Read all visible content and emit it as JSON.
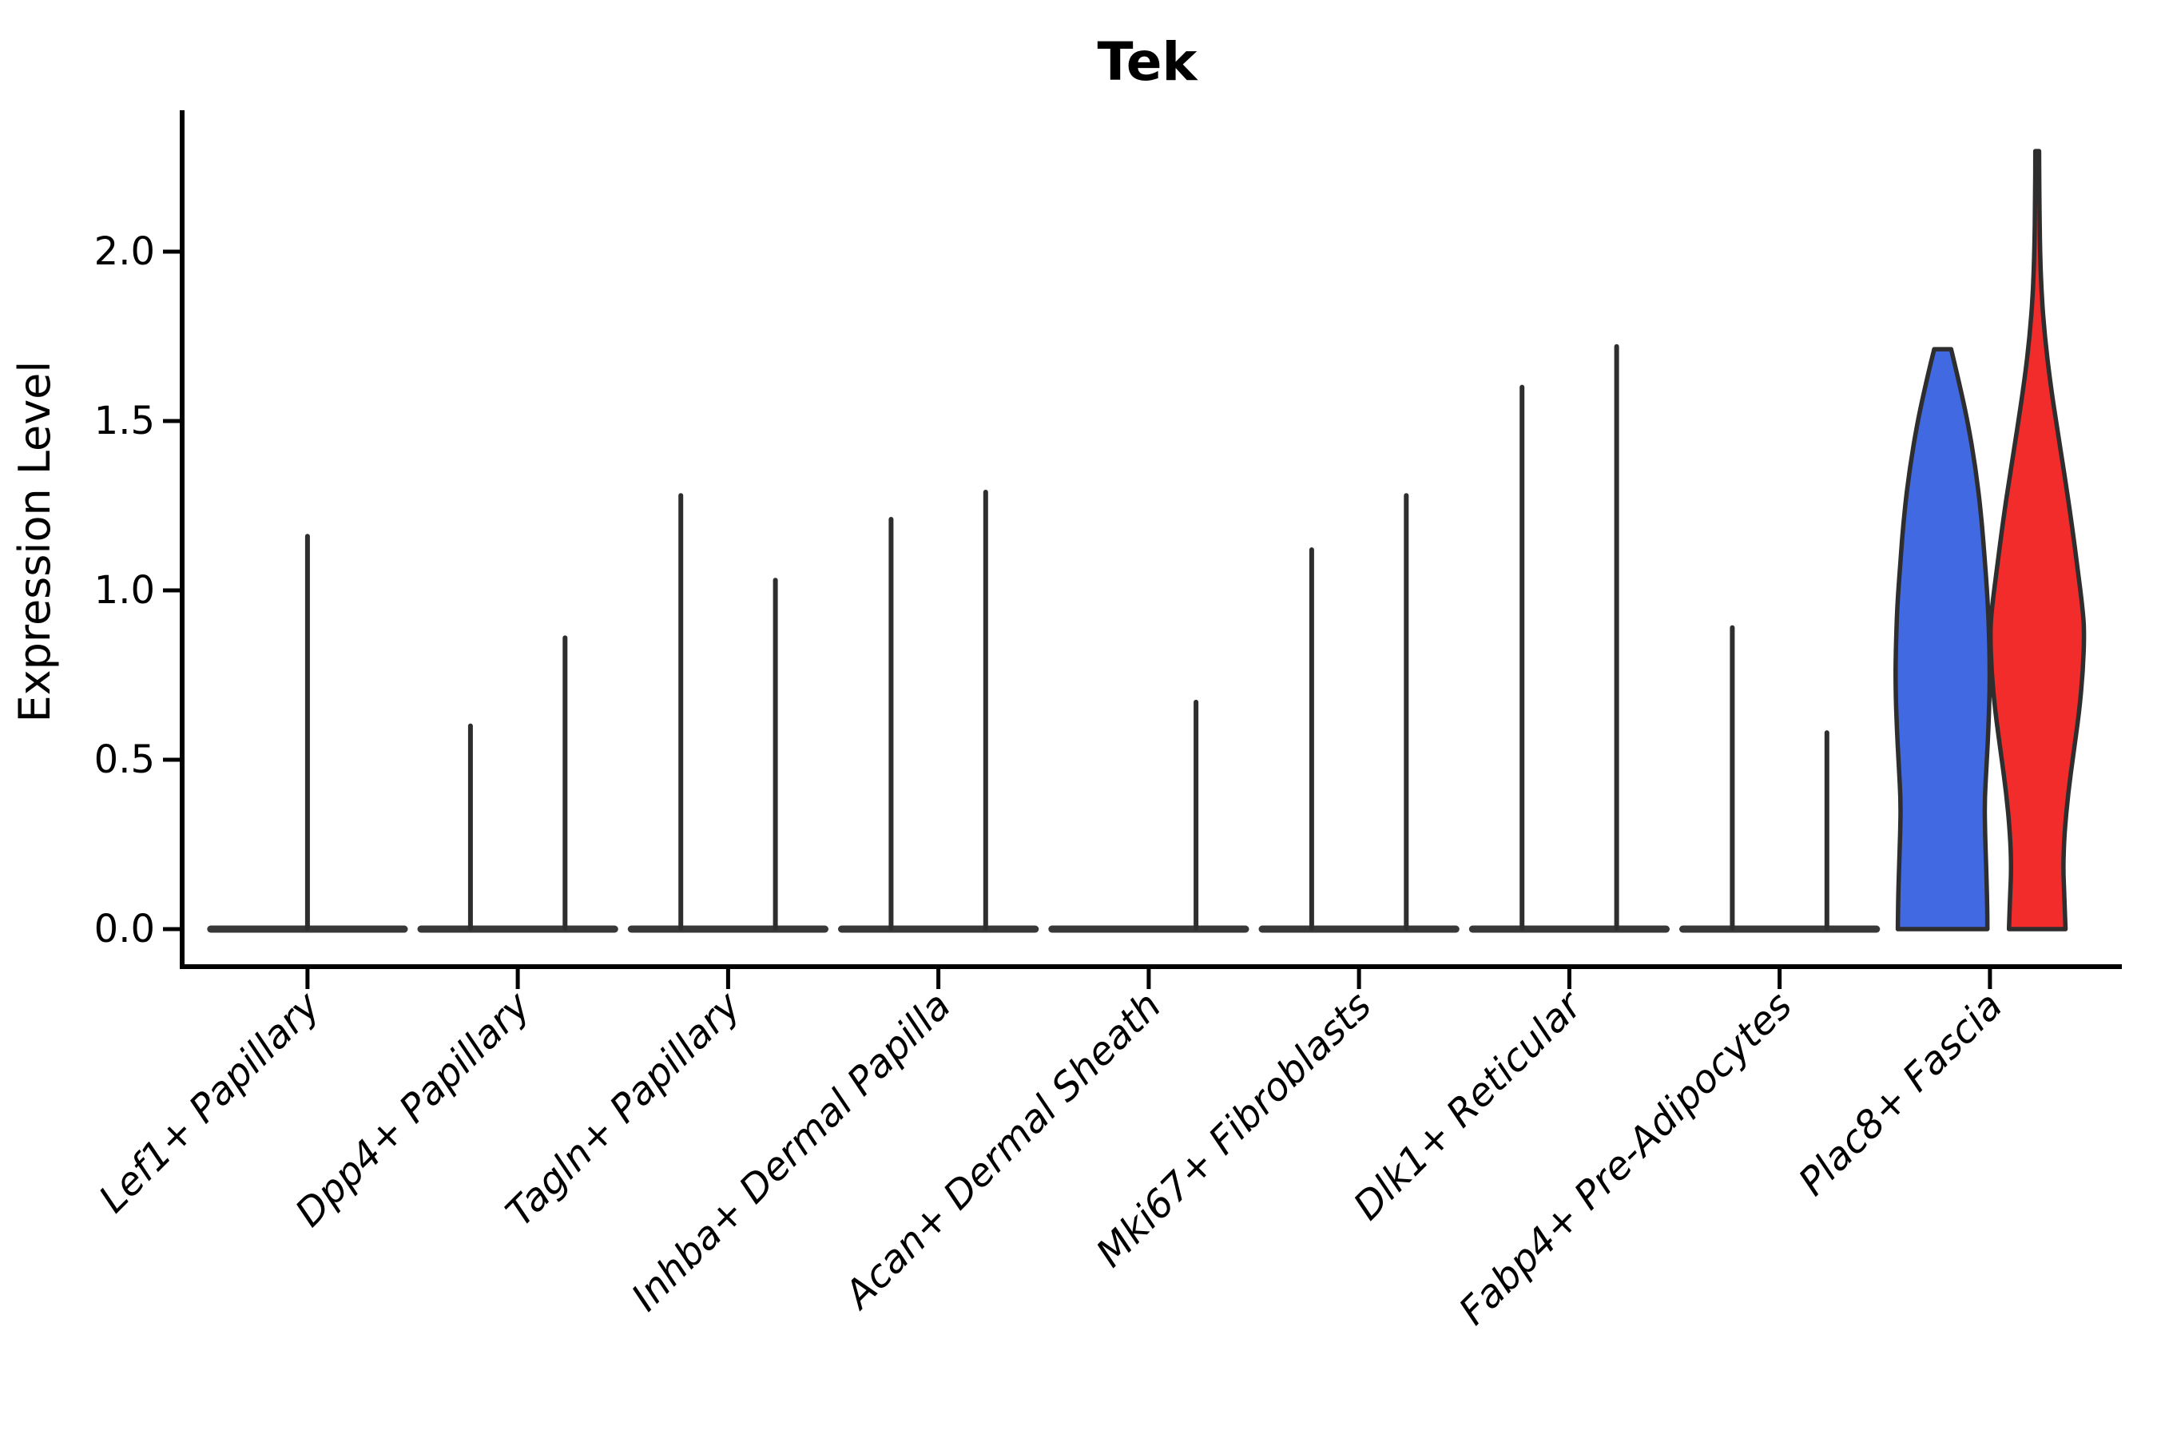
{
  "page": {
    "title": "Tek"
  },
  "chart_data": {
    "type": "violin",
    "title": "Tek",
    "xlabel": "",
    "ylabel": "Expression Level",
    "ytick_labels": [
      "0.0",
      "0.5",
      "1.0",
      "1.5",
      "2.0"
    ],
    "ytick_values": [
      0.0,
      0.5,
      1.0,
      1.5,
      2.0
    ],
    "ylim": [
      -0.11,
      2.41
    ],
    "grid": "off",
    "legend": "none",
    "categories": [
      "Lef1+ Papillary",
      "Dpp4+ Papillary",
      "Tagln+ Papillary",
      "Inhba+ Dermal Papilla",
      "Acan+ Dermal Sheath",
      "Mki67+ Fibroblasts",
      "Dlk1+ Reticular",
      "Fabp4+ Pre-Adipocytes",
      "Plac8+ Fascia"
    ],
    "groups": [
      {
        "category": "Lef1+ Papillary",
        "violins": [
          {
            "side": "center",
            "style": "spike",
            "max_expression": 1.16
          }
        ]
      },
      {
        "category": "Dpp4+ Papillary",
        "violins": [
          {
            "side": "left",
            "style": "spike",
            "max_expression": 0.6
          },
          {
            "side": "right",
            "style": "spike",
            "max_expression": 0.86
          }
        ]
      },
      {
        "category": "Tagln+ Papillary",
        "violins": [
          {
            "side": "left",
            "style": "spike",
            "max_expression": 1.28
          },
          {
            "side": "right",
            "style": "spike",
            "max_expression": 1.03
          }
        ]
      },
      {
        "category": "Inhba+ Dermal Papilla",
        "violins": [
          {
            "side": "left",
            "style": "spike",
            "max_expression": 1.21
          },
          {
            "side": "right",
            "style": "spike",
            "max_expression": 1.29
          }
        ]
      },
      {
        "category": "Acan+ Dermal Sheath",
        "violins": [
          {
            "side": "right",
            "style": "spike",
            "max_expression": 0.67
          }
        ]
      },
      {
        "category": "Mki67+ Fibroblasts",
        "violins": [
          {
            "side": "left",
            "style": "spike",
            "max_expression": 1.12
          },
          {
            "side": "right",
            "style": "spike",
            "max_expression": 1.28
          }
        ]
      },
      {
        "category": "Dlk1+ Reticular",
        "violins": [
          {
            "side": "left",
            "style": "spike",
            "max_expression": 1.6
          },
          {
            "side": "right",
            "style": "spike",
            "max_expression": 1.72
          }
        ]
      },
      {
        "category": "Fabp4+ Pre-Adipocytes",
        "violins": [
          {
            "side": "left",
            "style": "spike",
            "max_expression": 0.89
          },
          {
            "side": "right",
            "style": "spike",
            "max_expression": 0.58
          }
        ]
      },
      {
        "category": "Plac8+ Fascia",
        "violins": [
          {
            "side": "left",
            "style": "filled",
            "max_expression": 1.71,
            "color": "#4169E1",
            "profile": [
              [
                1.712,
                0.18
              ],
              [
                1.62,
                0.34
              ],
              [
                1.5,
                0.53
              ],
              [
                1.36,
                0.7
              ],
              [
                1.22,
                0.82
              ],
              [
                1.08,
                0.9
              ],
              [
                0.95,
                0.965
              ],
              [
                0.82,
                0.995
              ],
              [
                0.72,
                1.0
              ],
              [
                0.6,
                0.975
              ],
              [
                0.48,
                0.93
              ],
              [
                0.38,
                0.89
              ],
              [
                0.28,
                0.9
              ],
              [
                0.18,
                0.925
              ],
              [
                0.08,
                0.945
              ],
              [
                0.0,
                0.95
              ]
            ]
          },
          {
            "side": "right",
            "style": "filled",
            "max_expression": 2.3,
            "color": "#F22B2B",
            "profile": [
              [
                2.297,
                0.04
              ],
              [
                2.15,
                0.045
              ],
              [
                2.0,
                0.06
              ],
              [
                1.88,
                0.09
              ],
              [
                1.75,
                0.16
              ],
              [
                1.62,
                0.27
              ],
              [
                1.48,
                0.42
              ],
              [
                1.34,
                0.58
              ],
              [
                1.2,
                0.73
              ],
              [
                1.06,
                0.86
              ],
              [
                0.95,
                0.96
              ],
              [
                0.88,
                1.0
              ],
              [
                0.76,
                0.97
              ],
              [
                0.64,
                0.89
              ],
              [
                0.52,
                0.77
              ],
              [
                0.4,
                0.655
              ],
              [
                0.28,
                0.575
              ],
              [
                0.18,
                0.55
              ],
              [
                0.1,
                0.575
              ],
              [
                0.0,
                0.6
              ]
            ]
          }
        ]
      }
    ],
    "colors": {
      "violin_blue": "#4169E1",
      "violin_red": "#F22B2B",
      "outline": "#2E2E2E",
      "baseline": "#383838",
      "axis": "#000000",
      "background": "#FFFFFF"
    }
  }
}
